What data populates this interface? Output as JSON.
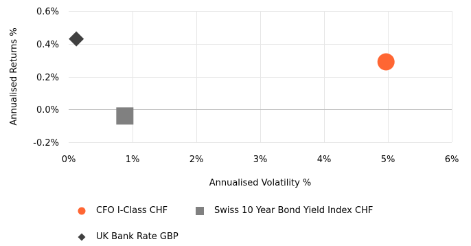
{
  "chart_data": {
    "type": "scatter",
    "title": "",
    "xlabel": "Annualised Volatility %",
    "ylabel": "Annualised Returns %",
    "xlim": [
      0,
      6
    ],
    "ylim": [
      -0.2,
      0.6
    ],
    "x_ticks": [
      0,
      1,
      2,
      3,
      4,
      5,
      6
    ],
    "x_tick_labels": [
      "0%",
      "1%",
      "2%",
      "3%",
      "4%",
      "5%",
      "6%"
    ],
    "y_ticks": [
      -0.2,
      0.0,
      0.2,
      0.4,
      0.6
    ],
    "y_tick_labels": [
      "-0.2%",
      "0.0%",
      "0.2%",
      "0.4%",
      "0.6%"
    ],
    "grid": true,
    "legend_position": "bottom",
    "series": [
      {
        "name": "CFO I-Class CHF",
        "marker": "circle",
        "color": "#FF6633",
        "x": [
          4.97
        ],
        "y": [
          0.29
        ]
      },
      {
        "name": "Swiss 10 Year Bond Yield Index CHF",
        "marker": "square",
        "color": "#808080",
        "x": [
          0.88
        ],
        "y": [
          -0.04
        ]
      },
      {
        "name": "UK Bank Rate GBP",
        "marker": "diamond",
        "color": "#404040",
        "x": [
          0.12
        ],
        "y": [
          0.43
        ]
      }
    ]
  }
}
